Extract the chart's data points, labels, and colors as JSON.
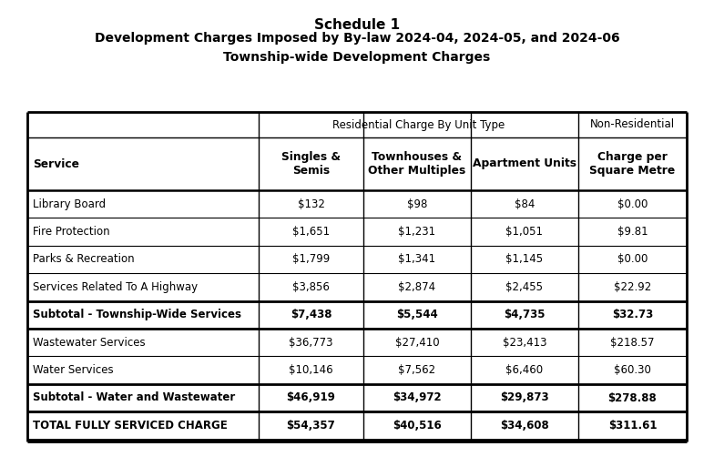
{
  "title1": "Schedule 1",
  "title2": "Development Charges Imposed by By-law 2024-04, 2024-05, and 2024-06\nTownship-wide Development Charges",
  "rows": [
    {
      "service": "Library Board",
      "singles": "$132",
      "townhouses": "$98",
      "apartments": "$84",
      "nonres": "$0.00",
      "bold": false,
      "thick_above": false
    },
    {
      "service": "Fire Protection",
      "singles": "$1,651",
      "townhouses": "$1,231",
      "apartments": "$1,051",
      "nonres": "$9.81",
      "bold": false,
      "thick_above": false
    },
    {
      "service": "Parks & Recreation",
      "singles": "$1,799",
      "townhouses": "$1,341",
      "apartments": "$1,145",
      "nonres": "$0.00",
      "bold": false,
      "thick_above": false
    },
    {
      "service": "Services Related To A Highway",
      "singles": "$3,856",
      "townhouses": "$2,874",
      "apartments": "$2,455",
      "nonres": "$22.92",
      "bold": false,
      "thick_above": false
    },
    {
      "service": "Subtotal - Township-Wide Services",
      "singles": "$7,438",
      "townhouses": "$5,544",
      "apartments": "$4,735",
      "nonres": "$32.73",
      "bold": true,
      "thick_above": true
    },
    {
      "service": "Wastewater Services",
      "singles": "$36,773",
      "townhouses": "$27,410",
      "apartments": "$23,413",
      "nonres": "$218.57",
      "bold": false,
      "thick_above": false
    },
    {
      "service": "Water Services",
      "singles": "$10,146",
      "townhouses": "$7,562",
      "apartments": "$6,460",
      "nonres": "$60.30",
      "bold": false,
      "thick_above": false
    },
    {
      "service": "Subtotal - Water and Wastewater",
      "singles": "$46,919",
      "townhouses": "$34,972",
      "apartments": "$29,873",
      "nonres": "$278.88",
      "bold": true,
      "thick_above": true
    },
    {
      "service": "TOTAL FULLY SERVICED CHARGE",
      "singles": "$54,357",
      "townhouses": "$40,516",
      "apartments": "$34,608",
      "nonres": "$311.61",
      "bold": true,
      "thick_above": true
    }
  ],
  "bg_color": "#ffffff"
}
